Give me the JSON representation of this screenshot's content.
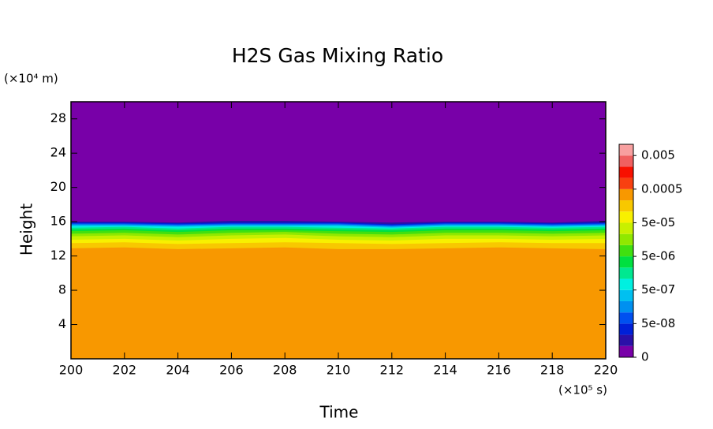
{
  "chart_data": {
    "type": "contour",
    "title": "H2S Gas Mixing Ratio",
    "xlabel": "Time",
    "ylabel": "Height",
    "xunit": "(×10⁵ s)",
    "yunit": "(×10⁴ m)",
    "xlim": [
      200,
      220
    ],
    "ylim": [
      0,
      30
    ],
    "xticks": [
      200,
      202,
      204,
      206,
      208,
      210,
      212,
      214,
      216,
      218,
      220
    ],
    "yticks": [
      4,
      8,
      12,
      16,
      20,
      24,
      28
    ],
    "x": [
      200,
      202,
      204,
      206,
      208,
      210,
      212,
      214,
      216,
      218,
      220
    ],
    "levels": [
      0,
      1e-08,
      2e-08,
      5e-08,
      1e-07,
      2e-07,
      5e-07,
      1e-06,
      2e-06,
      5e-06,
      1e-05,
      2e-05,
      5e-05,
      0.0001,
      0.0002,
      0.0005,
      0.001,
      0.002,
      0.005,
      0.01
    ],
    "colors": [
      "#7800a8",
      "#2a10a8",
      "#0020d8",
      "#0050f0",
      "#0090f0",
      "#00c0f0",
      "#00f0e0",
      "#00e890",
      "#00e040",
      "#40e010",
      "#90e800",
      "#c8f000",
      "#f8f000",
      "#f8c800",
      "#f89800",
      "#f84010",
      "#f81000",
      "#f06060",
      "#f8a0a0"
    ],
    "colorbar_ticks": [
      0,
      {
        "value": 5e-08,
        "label": "5e-08"
      },
      {
        "value": 5e-07,
        "label": "5e-07"
      },
      {
        "value": 5e-06,
        "label": "5e-06"
      },
      {
        "value": 5e-05,
        "label": "5e-05"
      },
      0.0005,
      0.005
    ],
    "contours": [
      {
        "level": 0.0002,
        "values": [
          12.9,
          13.0,
          12.8,
          12.9,
          13.0,
          12.8,
          12.8,
          12.9,
          13.0,
          12.9,
          12.8
        ]
      },
      {
        "level": 0.0001,
        "values": [
          13.5,
          13.6,
          13.4,
          13.5,
          13.6,
          13.5,
          13.4,
          13.5,
          13.6,
          13.5,
          13.5
        ]
      },
      {
        "level": 5e-05,
        "values": [
          13.9,
          14.0,
          13.8,
          14.0,
          14.1,
          13.9,
          13.8,
          14.0,
          14.0,
          13.9,
          14.0
        ]
      },
      {
        "level": 2e-05,
        "values": [
          14.3,
          14.4,
          14.2,
          14.4,
          14.5,
          14.3,
          14.2,
          14.4,
          14.4,
          14.3,
          14.4
        ]
      },
      {
        "level": 1e-05,
        "values": [
          14.6,
          14.7,
          14.5,
          14.7,
          14.8,
          14.6,
          14.5,
          14.7,
          14.7,
          14.6,
          14.7
        ]
      },
      {
        "level": 5e-06,
        "values": [
          14.9,
          15.0,
          14.8,
          15.0,
          15.0,
          14.9,
          14.8,
          15.0,
          15.0,
          14.9,
          15.0
        ]
      },
      {
        "level": 2e-06,
        "values": [
          15.1,
          15.2,
          15.0,
          15.2,
          15.2,
          15.1,
          15.0,
          15.2,
          15.2,
          15.1,
          15.2
        ]
      },
      {
        "level": 1e-06,
        "values": [
          15.3,
          15.4,
          15.2,
          15.4,
          15.4,
          15.3,
          15.2,
          15.4,
          15.4,
          15.3,
          15.4
        ]
      },
      {
        "level": 5e-07,
        "values": [
          15.5,
          15.5,
          15.4,
          15.5,
          15.5,
          15.5,
          15.3,
          15.5,
          15.5,
          15.4,
          15.5
        ]
      },
      {
        "level": 2e-07,
        "values": [
          15.6,
          15.6,
          15.5,
          15.6,
          15.6,
          15.6,
          15.4,
          15.6,
          15.6,
          15.5,
          15.6
        ]
      },
      {
        "level": 1e-07,
        "values": [
          15.7,
          15.7,
          15.6,
          15.7,
          15.7,
          15.7,
          15.5,
          15.7,
          15.7,
          15.6,
          15.7
        ]
      },
      {
        "level": 5e-08,
        "values": [
          15.8,
          15.8,
          15.7,
          15.8,
          15.8,
          15.8,
          15.6,
          15.8,
          15.8,
          15.7,
          15.8
        ]
      },
      {
        "level": 2e-08,
        "values": [
          15.9,
          15.9,
          15.8,
          15.9,
          15.9,
          15.9,
          15.7,
          15.9,
          15.9,
          15.8,
          15.9
        ]
      },
      {
        "level": 1e-08,
        "values": [
          16.0,
          16.0,
          15.9,
          16.1,
          16.1,
          16.0,
          15.9,
          16.0,
          16.0,
          15.9,
          16.1
        ]
      }
    ]
  }
}
